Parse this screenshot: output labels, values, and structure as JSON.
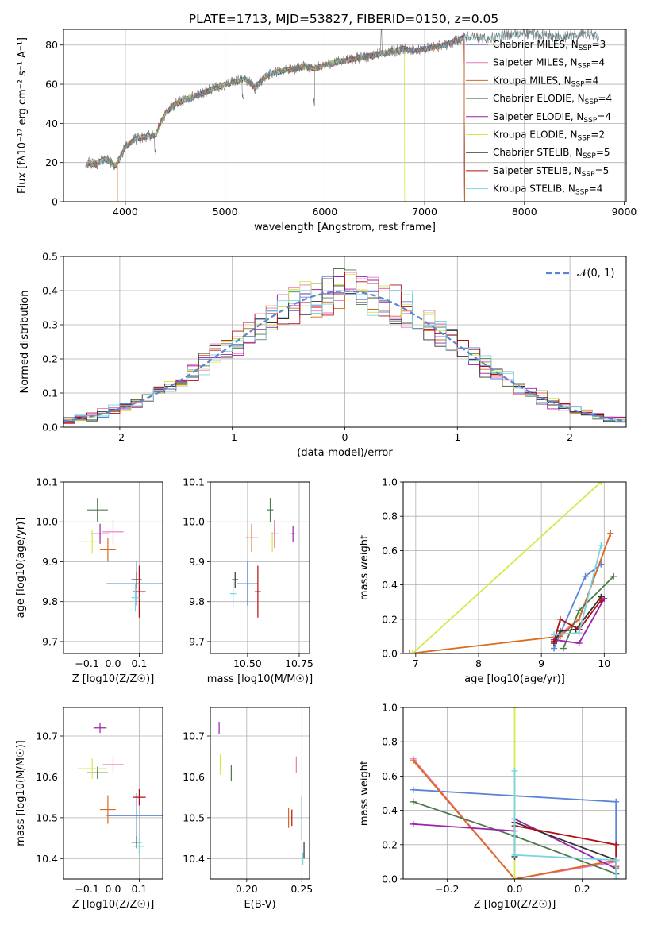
{
  "figure_title": "PLATE=1713, MJD=53827, FIBERID=0150, z=0.05",
  "models": [
    {
      "name": "Chabrier MILES",
      "nssp": "3",
      "color": "#5b84d6"
    },
    {
      "name": "Salpeter MILES",
      "nssp": "4",
      "color": "#ee77b8"
    },
    {
      "name": "Kroupa MILES",
      "nssp": "4",
      "color": "#d96a1e"
    },
    {
      "name": "Chabrier ELODIE",
      "nssp": "4",
      "color": "#4e7b4e"
    },
    {
      "name": "Salpeter ELODIE",
      "nssp": "4",
      "color": "#9b22a8"
    },
    {
      "name": "Kroupa ELODIE",
      "nssp": "2",
      "color": "#d4e94c"
    },
    {
      "name": "Chabrier STELIB",
      "nssp": "5",
      "color": "#333333"
    },
    {
      "name": "Salpeter STELIB",
      "nssp": "5",
      "color": "#b30f14"
    },
    {
      "name": "Kroupa STELIB",
      "nssp": "4",
      "color": "#7ad6de"
    }
  ],
  "chart_data": [
    {
      "id": "spectrum",
      "type": "line",
      "title": "PLATE=1713, MJD=53827, FIBERID=0150, z=0.05",
      "xlabel": "wavelength [Angstrom, rest frame]",
      "ylabel": "Flux [fλ10⁻¹⁷ erg cm⁻² s⁻¹ A⁻¹]",
      "xlim": [
        3380,
        9020
      ],
      "ylim": [
        0,
        88
      ],
      "xticks": [
        4000,
        5000,
        6000,
        7000,
        8000,
        9000
      ],
      "yticks": [
        0,
        20,
        40,
        60,
        80
      ],
      "legend": "right",
      "observed_continuum": {
        "x": [
          3600,
          3700,
          3800,
          3900,
          4000,
          4100,
          4200,
          4300,
          4400,
          4500,
          4600,
          4700,
          4800,
          4900,
          5000,
          5100,
          5200,
          5300,
          5400,
          5500,
          5600,
          5700,
          5800,
          5900,
          6000,
          6100,
          6200,
          6300,
          6400,
          6500,
          6600,
          6700,
          6800,
          6900,
          7000,
          7100,
          7200,
          7300,
          7400,
          7500,
          7600,
          7800,
          8000,
          8200,
          8400,
          8600,
          8750
        ],
        "y": [
          20,
          19,
          22,
          18,
          28,
          32,
          33,
          34,
          45,
          50,
          52,
          54,
          56,
          58,
          60,
          61,
          63,
          58,
          64,
          66,
          67,
          68,
          69,
          68,
          70,
          71,
          72,
          73,
          74,
          75,
          76,
          77,
          78,
          77,
          78,
          79,
          80,
          82,
          84,
          84,
          83,
          85,
          86,
          85,
          84,
          86,
          84
        ]
      },
      "models_end_wavelength": 7400,
      "kroupa_elodie_drop_wavelength": 6800,
      "kroupa_miles_drop_wavelength": 3920
    },
    {
      "id": "residuals",
      "type": "line",
      "xlabel": "(data-model)/error",
      "ylabel": "Normed distribution",
      "xlim": [
        -2.5,
        2.5
      ],
      "ylim": [
        0,
        0.5
      ],
      "xticks": [
        -2,
        -1,
        0,
        1,
        2
      ],
      "yticks": [
        0.0,
        0.1,
        0.2,
        0.3,
        0.4,
        0.5
      ],
      "legend": "top-right",
      "legend_label": "𝒩(0, 1)",
      "bin_edges_start": -2.5,
      "bin_width": 0.1
    },
    {
      "id": "age_vs_Z",
      "type": "scatter",
      "xlabel": "Z [log10(Z/Z☉)]",
      "ylabel": "age  [log10(age/yr)]",
      "xlim": [
        -0.19,
        0.19
      ],
      "ylim": [
        9.67,
        10.1
      ],
      "xticks": [
        -0.1,
        0.0,
        0.1
      ],
      "xticklabels": [
        "−0.1",
        "0.0",
        "0.1"
      ],
      "yticks": [
        9.7,
        9.8,
        9.9,
        10.0,
        10.1
      ],
      "points": [
        {
          "model": 0,
          "x": 0.09,
          "xerr": 0.23,
          "y": 9.845,
          "yerr": 0.11
        },
        {
          "model": 1,
          "x": 0.0,
          "xerr": 0.08,
          "y": 9.975,
          "yerr": 0.06
        },
        {
          "model": 2,
          "x": -0.02,
          "xerr": 0.06,
          "y": 9.93,
          "yerr": 0.06
        },
        {
          "model": 3,
          "x": -0.06,
          "xerr": 0.08,
          "y": 10.03,
          "yerr": 0.06
        },
        {
          "model": 4,
          "x": -0.05,
          "xerr": 0.07,
          "y": 9.97,
          "yerr": 0.05
        },
        {
          "model": 5,
          "x": -0.08,
          "xerr": 0.11,
          "y": 9.95,
          "yerr": 0.06
        },
        {
          "model": 6,
          "x": 0.09,
          "xerr": 0.04,
          "y": 9.855,
          "yerr": 0.04
        },
        {
          "model": 7,
          "x": 0.1,
          "xerr": 0.05,
          "y": 9.825,
          "yerr": 0.13
        },
        {
          "model": 8,
          "x": 0.085,
          "xerr": 0.03,
          "y": 9.81,
          "yerr": 0.07
        }
      ]
    },
    {
      "id": "age_vs_mass",
      "type": "scatter",
      "xlabel": "mass [log10(M/M☉)]",
      "ylabel": "",
      "xlim": [
        10.32,
        10.8
      ],
      "ylim": [
        9.67,
        10.1
      ],
      "xticks": [
        10.5,
        10.75
      ],
      "xticklabels": [
        "10.50",
        "10.75"
      ],
      "yticks": [
        9.7,
        9.8,
        9.9,
        10.0,
        10.1
      ],
      "points": [
        {
          "model": 0,
          "x": 10.5,
          "xerr": 0.1,
          "y": 9.845,
          "yerr": 0.11
        },
        {
          "model": 1,
          "x": 10.63,
          "xerr": 0.04,
          "y": 9.97,
          "yerr": 0.07
        },
        {
          "model": 2,
          "x": 10.52,
          "xerr": 0.06,
          "y": 9.96,
          "yerr": 0.07
        },
        {
          "model": 3,
          "x": 10.61,
          "xerr": 0.03,
          "y": 10.03,
          "yerr": 0.06
        },
        {
          "model": 4,
          "x": 10.72,
          "xerr": 0.02,
          "y": 9.97,
          "yerr": 0.04
        },
        {
          "model": 5,
          "x": 10.62,
          "xerr": 0.03,
          "y": 9.95,
          "yerr": 0.05
        },
        {
          "model": 6,
          "x": 10.44,
          "xerr": 0.03,
          "y": 9.855,
          "yerr": 0.04
        },
        {
          "model": 7,
          "x": 10.55,
          "xerr": 0.03,
          "y": 9.825,
          "yerr": 0.13
        },
        {
          "model": 8,
          "x": 10.43,
          "xerr": 0.03,
          "y": 9.82,
          "yerr": 0.07
        }
      ]
    },
    {
      "id": "weight_vs_age",
      "type": "line",
      "xlabel": "age  [log10(age/yr)]",
      "ylabel": "mass weight",
      "xlim": [
        6.8,
        10.35
      ],
      "ylim": [
        0,
        1.0
      ],
      "xticks": [
        7,
        8,
        9,
        10
      ],
      "yticks": [
        0.0,
        0.2,
        0.4,
        0.6,
        0.8,
        1.0
      ],
      "series": [
        {
          "model": 0,
          "x": [
            9.2,
            9.7,
            9.95
          ],
          "y": [
            0.03,
            0.45,
            0.52
          ]
        },
        {
          "model": 1,
          "x": [
            9.25,
            9.6,
            10.1
          ],
          "y": [
            0.1,
            0.2,
            0.7
          ]
        },
        {
          "model": 2,
          "x": [
            6.9,
            9.3,
            9.6,
            10.1
          ],
          "y": [
            0.0,
            0.1,
            0.2,
            0.7
          ]
        },
        {
          "model": 3,
          "x": [
            9.35,
            9.6,
            10.15
          ],
          "y": [
            0.03,
            0.25,
            0.45
          ]
        },
        {
          "model": 4,
          "x": [
            9.2,
            9.6,
            10.0
          ],
          "y": [
            0.08,
            0.06,
            0.32
          ]
        },
        {
          "model": 5,
          "x": [
            6.95,
            9.95
          ],
          "y": [
            0.0,
            1.0
          ]
        },
        {
          "model": 6,
          "x": [
            9.2,
            9.3,
            9.55,
            9.95
          ],
          "y": [
            0.06,
            0.13,
            0.14,
            0.33
          ]
        },
        {
          "model": 7,
          "x": [
            9.2,
            9.3,
            9.6,
            9.95
          ],
          "y": [
            0.07,
            0.2,
            0.14,
            0.31
          ]
        },
        {
          "model": 8,
          "x": [
            9.2,
            9.6,
            9.95
          ],
          "y": [
            0.11,
            0.12,
            0.63
          ]
        }
      ]
    },
    {
      "id": "mass_vs_Z",
      "type": "scatter",
      "xlabel": "Z [log10(Z/Z☉)]",
      "ylabel": "mass [log10(M/M☉)]",
      "xlim": [
        -0.19,
        0.19
      ],
      "ylim": [
        10.35,
        10.77
      ],
      "xticks": [
        -0.1,
        0.0,
        0.1
      ],
      "xticklabels": [
        "−0.1",
        "0.0",
        "0.1"
      ],
      "yticks": [
        10.4,
        10.5,
        10.6,
        10.7
      ],
      "points": [
        {
          "model": 0,
          "x": 0.09,
          "xerr": 0.23,
          "y": 10.505,
          "yerr": 0.11
        },
        {
          "model": 1,
          "x": 0.0,
          "xerr": 0.08,
          "y": 10.63,
          "yerr": 0.04
        },
        {
          "model": 2,
          "x": -0.02,
          "xerr": 0.06,
          "y": 10.52,
          "yerr": 0.07
        },
        {
          "model": 3,
          "x": -0.06,
          "xerr": 0.08,
          "y": 10.61,
          "yerr": 0.03
        },
        {
          "model": 4,
          "x": -0.05,
          "xerr": 0.05,
          "y": 10.72,
          "yerr": 0.025
        },
        {
          "model": 5,
          "x": -0.08,
          "xerr": 0.11,
          "y": 10.62,
          "yerr": 0.05
        },
        {
          "model": 6,
          "x": 0.09,
          "xerr": 0.04,
          "y": 10.44,
          "yerr": 0.03
        },
        {
          "model": 7,
          "x": 0.1,
          "xerr": 0.05,
          "y": 10.55,
          "yerr": 0.04
        },
        {
          "model": 8,
          "x": 0.1,
          "xerr": 0.04,
          "y": 10.43,
          "yerr": 0.04
        }
      ]
    },
    {
      "id": "mass_vs_ebv",
      "type": "scatter",
      "xlabel": "E(B-V)",
      "ylabel": "",
      "xlim": [
        0.167,
        0.257
      ],
      "ylim": [
        10.35,
        10.77
      ],
      "xticks": [
        0.2,
        0.25
      ],
      "xticklabels": [
        "0.20",
        "0.25"
      ],
      "yticks": [
        10.4,
        10.5,
        10.6,
        10.7
      ],
      "points": [
        {
          "model": 0,
          "x": 0.25,
          "y": 10.5,
          "yerr": 0.11
        },
        {
          "model": 1,
          "x": 0.245,
          "y": 10.63,
          "yerr": 0.04
        },
        {
          "model": 2,
          "x": 0.238,
          "y": 10.5,
          "yerr": 0.05
        },
        {
          "model": 3,
          "x": 0.186,
          "y": 10.61,
          "yerr": 0.04
        },
        {
          "model": 4,
          "x": 0.175,
          "y": 10.72,
          "yerr": 0.03
        },
        {
          "model": 5,
          "x": 0.176,
          "y": 10.63,
          "yerr": 0.05
        },
        {
          "model": 6,
          "x": 0.252,
          "y": 10.42,
          "yerr": 0.04
        },
        {
          "model": 7,
          "x": 0.241,
          "y": 10.5,
          "yerr": 0.04
        },
        {
          "model": 8,
          "x": 0.251,
          "y": 10.4,
          "yerr": 0.03
        }
      ]
    },
    {
      "id": "weight_vs_Z",
      "type": "line",
      "xlabel": "Z [log10(Z/Z☉)]",
      "ylabel": "mass weight",
      "xlim": [
        -0.33,
        0.33
      ],
      "ylim": [
        0,
        1.0
      ],
      "xticks": [
        -0.2,
        0.0,
        0.2
      ],
      "xticklabels": [
        "−0.2",
        "0.0",
        "0.2"
      ],
      "yticks": [
        0.0,
        0.2,
        0.4,
        0.6,
        0.8,
        1.0
      ],
      "series": [
        {
          "model": 0,
          "x": [
            -0.3,
            0.3,
            0.3
          ],
          "y": [
            0.52,
            0.45,
            0.03
          ]
        },
        {
          "model": 1,
          "x": [
            -0.3,
            0.0,
            0.3,
            0.3
          ],
          "y": [
            0.7,
            0.0,
            0.1,
            0.07
          ]
        },
        {
          "model": 2,
          "x": [
            -0.3,
            0.0,
            0.3,
            0.3
          ],
          "y": [
            0.69,
            0.0,
            0.11,
            0.07
          ]
        },
        {
          "model": 3,
          "x": [
            -0.3,
            0.0,
            0.3
          ],
          "y": [
            0.45,
            0.25,
            0.03
          ]
        },
        {
          "model": 4,
          "x": [
            -0.3,
            0.0,
            0.0,
            0.3
          ],
          "y": [
            0.32,
            0.28,
            0.35,
            0.06
          ]
        },
        {
          "model": 5,
          "x": [
            0.0,
            0.0
          ],
          "y": [
            0.0,
            1.0
          ]
        },
        {
          "model": 6,
          "x": [
            0.0,
            0.0,
            0.3
          ],
          "y": [
            0.13,
            0.33,
            0.11
          ]
        },
        {
          "model": 7,
          "x": [
            0.0,
            0.3,
            0.3
          ],
          "y": [
            0.31,
            0.2,
            0.08
          ]
        },
        {
          "model": 8,
          "x": [
            0.0,
            0.0,
            0.3,
            0.3
          ],
          "y": [
            0.63,
            0.14,
            0.11,
            0.0
          ]
        }
      ]
    }
  ]
}
